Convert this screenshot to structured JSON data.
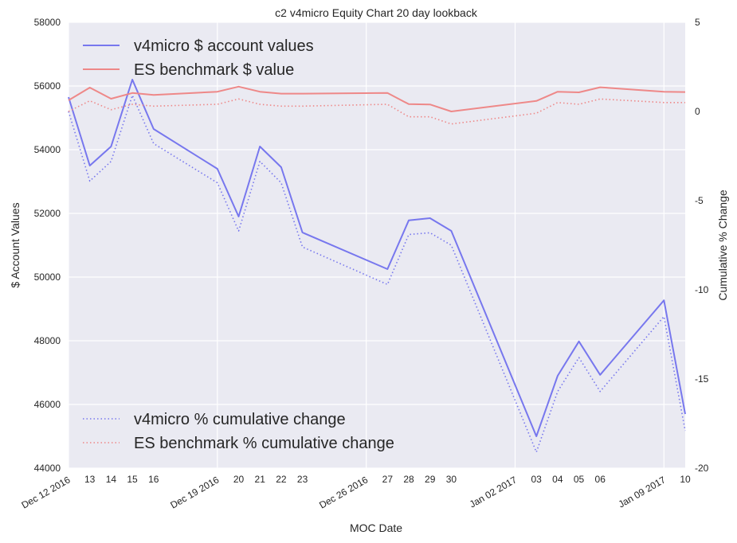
{
  "chart_data": {
    "type": "line",
    "title": "c2 v4micro Equity Chart 20 day lookback",
    "xlabel": "MOC Date",
    "ylabel": "$ Account Values",
    "y2label": "Cumulative % Change",
    "ylim": [
      44000,
      58000
    ],
    "y2lim": [
      -20,
      5
    ],
    "xlim": [
      "2016-12-12",
      "2017-01-10"
    ],
    "grid": true,
    "major_ticks": [
      {
        "date": "2016-12-12",
        "label": "Dec 12 2016"
      },
      {
        "date": "2016-12-19",
        "label": "Dec 19 2016"
      },
      {
        "date": "2016-12-26",
        "label": "Dec 26 2016"
      },
      {
        "date": "2017-01-02",
        "label": "Jan 02 2017"
      },
      {
        "date": "2017-01-09",
        "label": "Jan 09 2017"
      }
    ],
    "minor_ticks": [
      {
        "date": "2016-12-13",
        "label": "13"
      },
      {
        "date": "2016-12-14",
        "label": "14"
      },
      {
        "date": "2016-12-15",
        "label": "15"
      },
      {
        "date": "2016-12-16",
        "label": "16"
      },
      {
        "date": "2016-12-20",
        "label": "20"
      },
      {
        "date": "2016-12-21",
        "label": "21"
      },
      {
        "date": "2016-12-22",
        "label": "22"
      },
      {
        "date": "2016-12-23",
        "label": "23"
      },
      {
        "date": "2016-12-27",
        "label": "27"
      },
      {
        "date": "2016-12-28",
        "label": "28"
      },
      {
        "date": "2016-12-29",
        "label": "29"
      },
      {
        "date": "2016-12-30",
        "label": "30"
      },
      {
        "date": "2017-01-03",
        "label": "03"
      },
      {
        "date": "2017-01-04",
        "label": "04"
      },
      {
        "date": "2017-01-05",
        "label": "05"
      },
      {
        "date": "2017-01-06",
        "label": "06"
      },
      {
        "date": "2017-01-10",
        "label": "10"
      }
    ],
    "y_ticks": [
      44000,
      46000,
      48000,
      50000,
      52000,
      54000,
      56000,
      58000
    ],
    "y2_ticks": [
      -20,
      -15,
      -10,
      -5,
      0,
      5
    ],
    "x": [
      "2016-12-12",
      "2016-12-13",
      "2016-12-14",
      "2016-12-15",
      "2016-12-16",
      "2016-12-19",
      "2016-12-20",
      "2016-12-21",
      "2016-12-22",
      "2016-12-23",
      "2016-12-27",
      "2016-12-28",
      "2016-12-29",
      "2016-12-30",
      "2017-01-03",
      "2017-01-04",
      "2017-01-05",
      "2017-01-06",
      "2017-01-09",
      "2017-01-10"
    ],
    "series": [
      {
        "name": "v4micro $ account values",
        "axis": "left",
        "style": "solid",
        "color": "#7777ee",
        "values": [
          55650,
          53500,
          54100,
          56200,
          54650,
          53400,
          51900,
          54100,
          53450,
          51400,
          50250,
          51780,
          51850,
          51450,
          45000,
          46900,
          47980,
          46930,
          49270,
          45700
        ]
      },
      {
        "name": "ES benchmark $ value",
        "axis": "left",
        "style": "solid",
        "color": "#ee8888",
        "values": [
          55550,
          55950,
          55600,
          55780,
          55720,
          55820,
          55980,
          55820,
          55760,
          55760,
          55780,
          55430,
          55420,
          55200,
          55530,
          55820,
          55800,
          55960,
          55820,
          55810
        ]
      },
      {
        "name": "v4micro % cumulative change",
        "axis": "right",
        "style": "dotted",
        "color": "#7777ee",
        "values": [
          0.0,
          -3.9,
          -2.8,
          0.9,
          -1.8,
          -4.0,
          -6.7,
          -2.8,
          -4.0,
          -7.6,
          -9.7,
          -6.9,
          -6.8,
          -7.5,
          -19.1,
          -15.7,
          -13.8,
          -15.7,
          -11.5,
          -17.9
        ]
      },
      {
        "name": "ES benchmark % cumulative change",
        "axis": "right",
        "style": "dotted",
        "color": "#ee8888",
        "values": [
          0.0,
          0.6,
          0.1,
          0.4,
          0.3,
          0.4,
          0.7,
          0.4,
          0.3,
          0.3,
          0.4,
          -0.3,
          -0.3,
          -0.7,
          -0.1,
          0.5,
          0.4,
          0.7,
          0.5,
          0.5
        ]
      }
    ],
    "legend_top": [
      "v4micro $ account values",
      "ES benchmark $ value"
    ],
    "legend_bottom": [
      "v4micro % cumulative change",
      "ES benchmark % cumulative change"
    ],
    "legend_placement": [
      "upper-left",
      "lower-left"
    ]
  }
}
